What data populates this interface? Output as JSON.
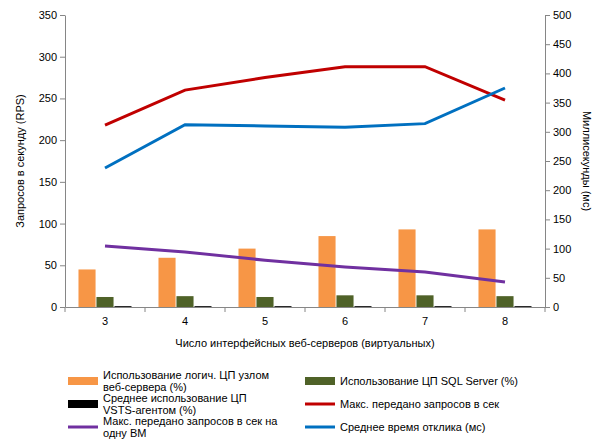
{
  "chart_data": {
    "type": "bar",
    "x_label": "Число интерфейсных веб-серверов (виртуальных)",
    "y_label": "Запросов в секунду (RPS)",
    "y2_label": "Миллисекунды (мс)",
    "categories": [
      "3",
      "4",
      "5",
      "6",
      "7",
      "8"
    ],
    "ylim": [
      0,
      350
    ],
    "yticks": [
      0,
      50,
      100,
      150,
      200,
      250,
      300,
      350
    ],
    "y2lim": [
      0,
      500
    ],
    "y2ticks": [
      0,
      50,
      100,
      150,
      200,
      250,
      300,
      350,
      400,
      450,
      500
    ],
    "grid": false,
    "legend": "bottom",
    "series": [
      {
        "name": "Использование логич. ЦП узлом веб-сервера (%)",
        "type": "bar",
        "color": "#f79646",
        "values": [
          45,
          59,
          70,
          85,
          93,
          93
        ]
      },
      {
        "name": "Использование ЦП SQL Server (%)",
        "type": "bar",
        "color": "#4f6228",
        "values": [
          12,
          13,
          12,
          14,
          14,
          13
        ]
      },
      {
        "name": "Среднее использование ЦП VSTS-агентом (%)",
        "type": "bar",
        "color": "#000000",
        "values": [
          1,
          1,
          1,
          1,
          1,
          1
        ]
      },
      {
        "name": "Макс. передано запросов в сек",
        "type": "line",
        "color": "#c00000",
        "marker": "none",
        "values": [
          218,
          260,
          275,
          288,
          288,
          248
        ]
      },
      {
        "name": "Макс. передано запросов в сек на одну ВМ",
        "type": "line",
        "color": "#7030a0",
        "marker": "none",
        "values": [
          73,
          66,
          56,
          48,
          42,
          30
        ]
      },
      {
        "name": "Среднее время отклика (мс)",
        "type": "line",
        "color": "#0070c0",
        "marker": "none",
        "axis": "y2",
        "values": [
          238,
          312,
          310,
          308,
          314,
          375
        ]
      }
    ]
  }
}
